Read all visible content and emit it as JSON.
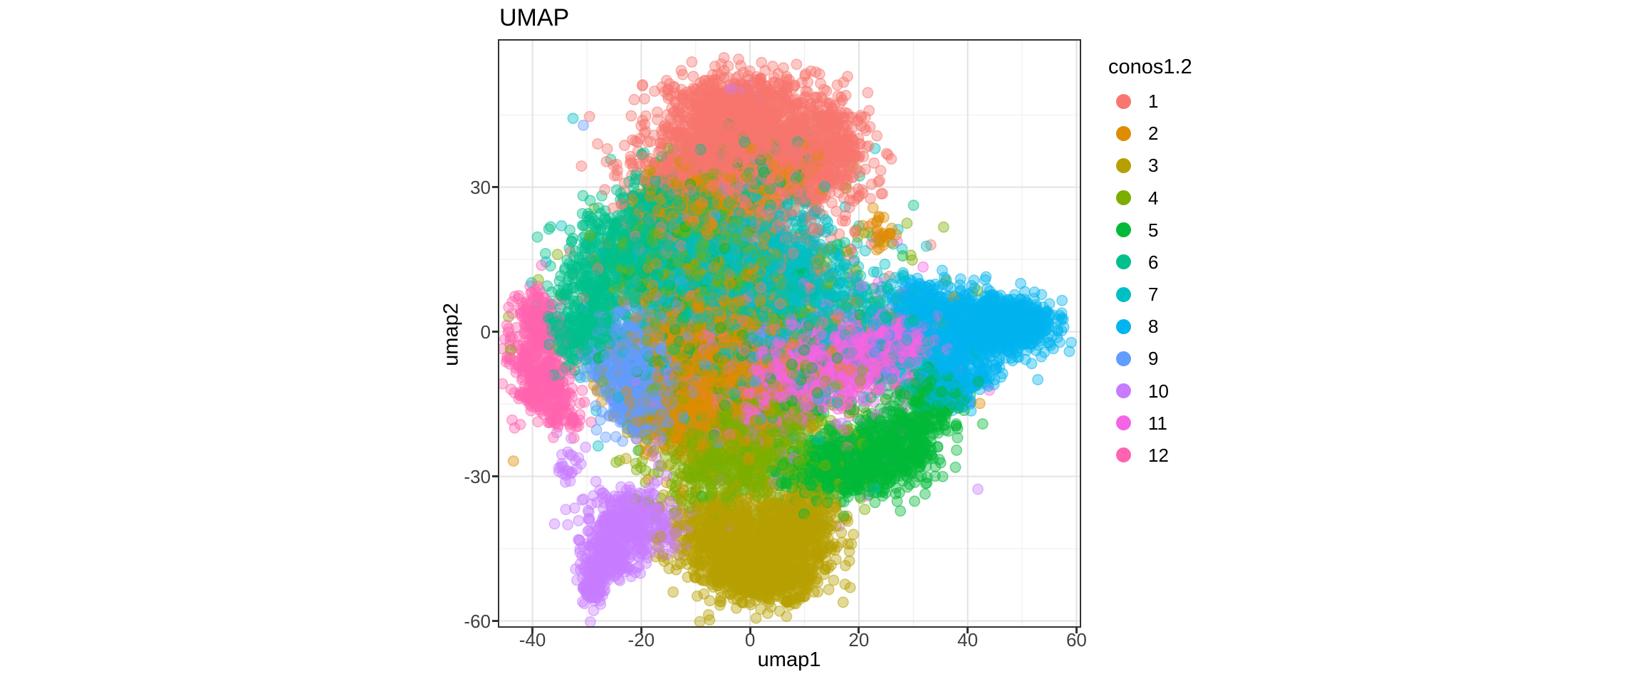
{
  "title": "UMAP",
  "style": {
    "background": "#FFFFFF",
    "panel_border": "#333333",
    "grid_major": "#E2E2E2",
    "grid_minor": "#EFEFEF",
    "tick_mark_color": "#333333",
    "tick_label_color": "#404040",
    "text_color": "#000000"
  },
  "legend": {
    "title": "conos1.2",
    "position": "right",
    "items": [
      {
        "label": "1",
        "color": "#F8766D"
      },
      {
        "label": "2",
        "color": "#DE8C00"
      },
      {
        "label": "3",
        "color": "#B79F00"
      },
      {
        "label": "4",
        "color": "#7CAE00"
      },
      {
        "label": "5",
        "color": "#00BA38"
      },
      {
        "label": "6",
        "color": "#00C08B"
      },
      {
        "label": "7",
        "color": "#00BFC4"
      },
      {
        "label": "8",
        "color": "#00B4F0"
      },
      {
        "label": "9",
        "color": "#619CFF"
      },
      {
        "label": "10",
        "color": "#C77CFF"
      },
      {
        "label": "11",
        "color": "#F564E3"
      },
      {
        "label": "12",
        "color": "#FF64B0"
      }
    ]
  },
  "chart_data": {
    "type": "scatter",
    "title": "UMAP",
    "xlabel": "umap1",
    "ylabel": "umap2",
    "legend_title": "conos1.2",
    "xlim": [
      -46.1,
      60.6
    ],
    "ylim": [
      -61.1,
      60.4
    ],
    "x_ticks": [
      -40,
      -20,
      0,
      20,
      40,
      60
    ],
    "x_minor_ticks": [
      -30,
      -10,
      10,
      30,
      50
    ],
    "y_ticks": [
      30,
      0,
      -30,
      -60
    ],
    "y_minor_ticks": [
      45,
      15,
      -15,
      -45
    ],
    "grid": true,
    "point_radius_px": 7.2,
    "point_fill_alpha": 0.4,
    "point_stroke_alpha": 0.5,
    "note": "UMAP embedding of ~18000 cells colored by conos1.2 cluster; clusters are described as gaussian blobs [cx, cy, sx, sy, n, tilt] in data units",
    "series": [
      {
        "name": "1",
        "color": "#F8766D",
        "blobs": [
          [
            0,
            41,
            9,
            6,
            900
          ],
          [
            -9,
            34,
            7,
            4.5,
            500
          ],
          [
            8,
            34,
            6,
            4.5,
            420
          ],
          [
            -2,
            47,
            6.5,
            3.5,
            380
          ],
          [
            14,
            38,
            4,
            4,
            200
          ],
          [
            0,
            20,
            12,
            8,
            220
          ],
          [
            5,
            -5,
            11,
            9,
            120
          ]
        ]
      },
      {
        "name": "2",
        "color": "#DE8C00",
        "blobs": [
          [
            -9,
            2,
            6,
            7,
            650
          ],
          [
            -4,
            -12,
            5,
            5,
            420
          ],
          [
            -13,
            -17,
            4,
            4,
            280
          ],
          [
            -10,
            26,
            5.5,
            4.5,
            380
          ],
          [
            24,
            20.5,
            1.4,
            1.8,
            28
          ],
          [
            -2,
            -4,
            13,
            11,
            300
          ],
          [
            6,
            33,
            4,
            3,
            100
          ]
        ]
      },
      {
        "name": "3",
        "color": "#B79F00",
        "blobs": [
          [
            0,
            -46,
            6.5,
            4.5,
            800
          ],
          [
            7,
            -42,
            4.5,
            4,
            380
          ],
          [
            -5,
            -41,
            4,
            3.5,
            300
          ],
          [
            3,
            -52,
            5,
            2.5,
            260
          ],
          [
            9,
            -36,
            3.5,
            3,
            150
          ],
          [
            -2,
            -20,
            9,
            8,
            130
          ]
        ]
      },
      {
        "name": "4",
        "color": "#7CAE00",
        "blobs": [
          [
            -3,
            -27,
            7,
            5,
            550
          ],
          [
            -10,
            17,
            6,
            6,
            330
          ],
          [
            3,
            -18,
            5,
            4,
            240
          ],
          [
            -1,
            0,
            15,
            13,
            400
          ],
          [
            -2,
            32,
            8,
            5,
            60
          ]
        ]
      },
      {
        "name": "5",
        "color": "#00BA38",
        "blobs": [
          [
            21,
            -27,
            6,
            3.5,
            500
          ],
          [
            13,
            -29,
            3.5,
            3,
            220
          ],
          [
            28,
            -21,
            4,
            3.5,
            280
          ],
          [
            34,
            -14,
            3,
            3,
            160
          ],
          [
            -8,
            8,
            7,
            7,
            170
          ],
          [
            5,
            -8,
            13,
            10,
            300
          ],
          [
            0,
            33,
            8,
            5,
            50
          ]
        ]
      },
      {
        "name": "6",
        "color": "#00C08B",
        "blobs": [
          [
            -14,
            26,
            5,
            4,
            340
          ],
          [
            -22,
            17,
            5,
            5,
            440
          ],
          [
            -29,
            7,
            3.5,
            5.5,
            260
          ],
          [
            -32,
            -1,
            2.5,
            3.5,
            140
          ],
          [
            -5,
            8,
            10,
            9,
            230
          ],
          [
            0,
            32,
            9,
            5,
            70
          ]
        ]
      },
      {
        "name": "7",
        "color": "#00BFC4",
        "blobs": [
          [
            -2,
            16,
            8,
            6,
            640
          ],
          [
            6,
            9,
            6,
            5,
            380
          ],
          [
            -11,
            12,
            6,
            5,
            330
          ],
          [
            2,
            0,
            13,
            11,
            330
          ],
          [
            20,
            4,
            6,
            5,
            160
          ],
          [
            28,
            -4,
            4,
            4,
            80
          ]
        ]
      },
      {
        "name": "8",
        "color": "#00B4F0",
        "blobs": [
          [
            46,
            2,
            4.5,
            3,
            620,
            -0.25
          ],
          [
            40,
            -3,
            3.5,
            3.5,
            300
          ],
          [
            34,
            4,
            3,
            3,
            160
          ],
          [
            30,
            8,
            2.5,
            2,
            80
          ],
          [
            36,
            -10,
            3.5,
            3,
            200
          ],
          [
            51,
            2,
            2.5,
            2,
            160
          ],
          [
            28,
            -2,
            5,
            5,
            80
          ]
        ]
      },
      {
        "name": "9",
        "color": "#619CFF",
        "blobs": [
          [
            -23,
            -6,
            3.5,
            5.5,
            400
          ],
          [
            -20,
            -15,
            3,
            3.5,
            210
          ],
          [
            -16,
            -2,
            4,
            5,
            90
          ],
          [
            -6,
            -6,
            9,
            8,
            70
          ],
          [
            0,
            28,
            8,
            6,
            25
          ]
        ]
      },
      {
        "name": "10",
        "color": "#C77CFF",
        "blobs": [
          [
            -22,
            -40,
            4,
            3.5,
            400
          ],
          [
            -26,
            -47,
            2.5,
            2.5,
            170
          ],
          [
            -28.8,
            -52.5,
            1.2,
            2.2,
            90
          ],
          [
            -33,
            -28,
            1.3,
            2,
            22
          ],
          [
            0,
            -18,
            13,
            10,
            70
          ],
          [
            -3,
            50,
            3,
            3,
            6
          ]
        ]
      },
      {
        "name": "11",
        "color": "#F564E3",
        "blobs": [
          [
            12,
            -7,
            5.5,
            4,
            300
          ],
          [
            20,
            -4,
            5,
            4,
            280
          ],
          [
            28,
            -2,
            3,
            3.5,
            170
          ],
          [
            4,
            -13,
            5,
            4,
            240
          ],
          [
            10,
            -5,
            12,
            8,
            250
          ]
        ]
      },
      {
        "name": "12",
        "color": "#FF64B0",
        "blobs": [
          [
            -40,
            -4,
            2.3,
            5.5,
            250
          ],
          [
            -37,
            -11,
            2.6,
            3,
            150
          ],
          [
            -34.5,
            -17,
            1.6,
            1.8,
            60
          ],
          [
            -39,
            4,
            1.8,
            2.2,
            60
          ]
        ]
      }
    ]
  }
}
